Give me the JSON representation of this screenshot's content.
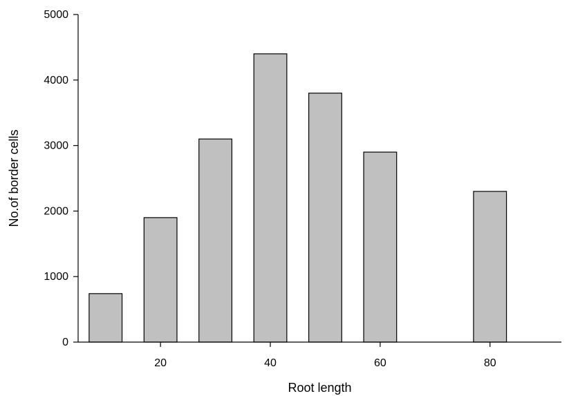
{
  "chart_data": {
    "type": "bar",
    "xlabel": "Root length",
    "ylabel": "No.of border cells",
    "xlim": [
      5,
      93
    ],
    "ylim": [
      0,
      5000
    ],
    "x_ticks": [
      20,
      40,
      60,
      80
    ],
    "y_ticks": [
      0,
      1000,
      2000,
      3000,
      4000,
      5000
    ],
    "bar_width": 6,
    "bar_color": "#c0c0c0",
    "edge_color": "#000000",
    "grid": false,
    "legend": "none",
    "x": [
      10,
      20,
      30,
      40,
      50,
      60,
      80
    ],
    "values": [
      740,
      1900,
      3100,
      4400,
      3800,
      2900,
      2300
    ]
  }
}
